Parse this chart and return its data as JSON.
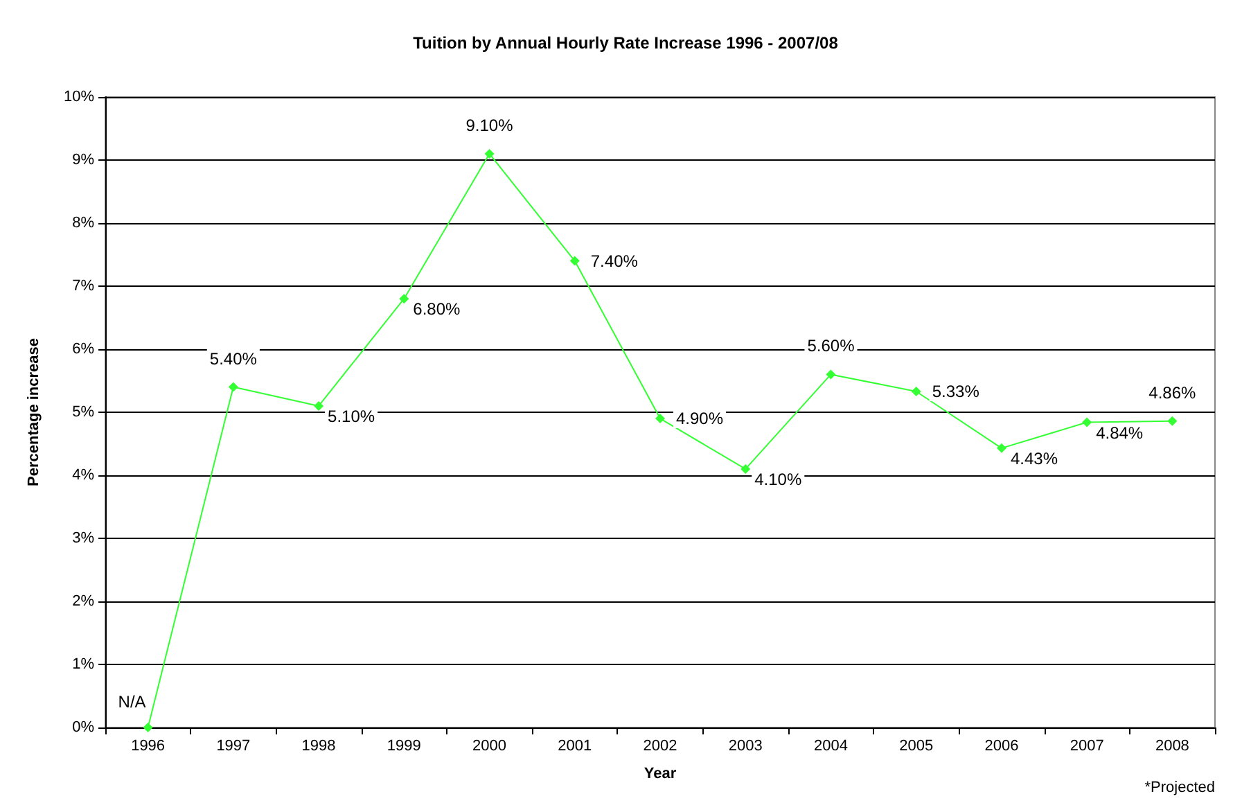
{
  "chart_data": {
    "type": "line",
    "title": "Tuition by Annual Hourly Rate Increase 1996 - 2007/08",
    "xlabel": "Year",
    "ylabel": "Percentage increase",
    "categories": [
      "1996",
      "1997",
      "1998",
      "1999",
      "2000",
      "2001",
      "2002",
      "2003",
      "2004",
      "2005",
      "2006",
      "2007",
      "2008"
    ],
    "series": [
      {
        "color": "#33ff33",
        "values": [
          0,
          5.4,
          5.1,
          6.8,
          9.1,
          7.4,
          4.9,
          4.1,
          5.6,
          5.33,
          4.43,
          4.84,
          4.86
        ],
        "value_labels": [
          "N/A",
          "5.40%",
          "5.10%",
          "6.80%",
          "9.10%",
          "7.40%",
          "4.90%",
          "4.10%",
          "5.60%",
          "5.33%",
          "4.43%",
          "4.84%",
          "4.86%"
        ]
      }
    ],
    "ylim": [
      0,
      10
    ],
    "yticks": [
      {
        "value": 0,
        "label": "0%"
      },
      {
        "value": 1,
        "label": "1%"
      },
      {
        "value": 2,
        "label": "2%"
      },
      {
        "value": 3,
        "label": "3%"
      },
      {
        "value": 4,
        "label": "4%"
      },
      {
        "value": 5,
        "label": "5%"
      },
      {
        "value": 6,
        "label": "6%"
      },
      {
        "value": 7,
        "label": "7%"
      },
      {
        "value": 8,
        "label": "8%"
      },
      {
        "value": 9,
        "label": "9%"
      },
      {
        "value": 10,
        "label": "10%"
      }
    ],
    "grid": "y",
    "marker": "diamond",
    "line_style": "solid",
    "annotations": [
      "*Projected"
    ]
  }
}
